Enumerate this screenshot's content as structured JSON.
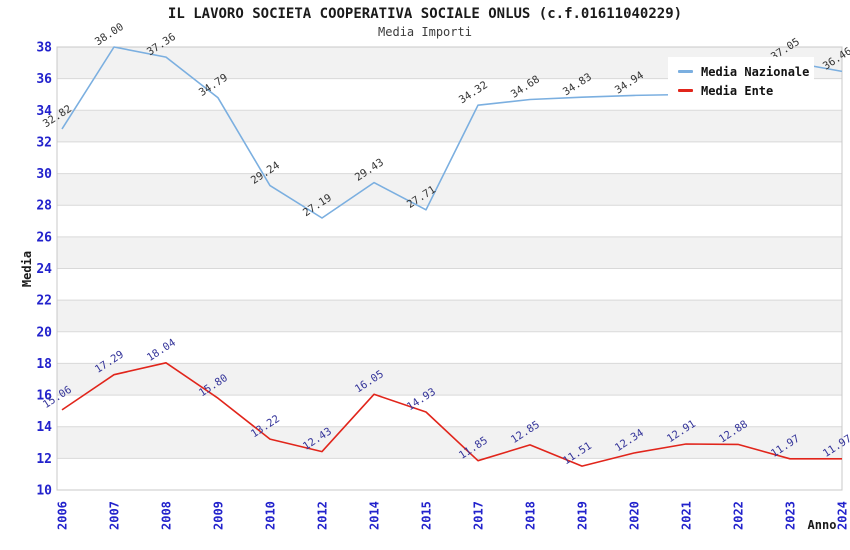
{
  "header": {
    "title": "IL LAVORO SOCIETA COOPERATIVA SOCIALE ONLUS (c.f.01611040229)",
    "subtitle": "Media Importi"
  },
  "chart_data": {
    "type": "line",
    "title": "IL LAVORO SOCIETA COOPERATIVA SOCIALE ONLUS (c.f.01611040229)",
    "subtitle": "Media Importi",
    "xlabel": "Anno",
    "ylabel": "Media",
    "ylim": [
      10,
      38
    ],
    "ytick_step": 2,
    "y_ticks": [
      38,
      36,
      34,
      32,
      30,
      28,
      26,
      24,
      22,
      20,
      18,
      16,
      14,
      12,
      10
    ],
    "grid": "horizontal-bands-alternating",
    "legend_position": "top-right",
    "categories": [
      "2006",
      "2007",
      "2008",
      "2009",
      "2010",
      "2012",
      "2014",
      "2015",
      "2017",
      "2018",
      "2019",
      "2020",
      "2021",
      "2022",
      "2023",
      "2024"
    ],
    "series": [
      {
        "name": "Media Nazionale",
        "color": "#7bafe0",
        "label_color": "#333333",
        "values": [
          32.82,
          38.0,
          37.36,
          34.79,
          29.24,
          27.19,
          29.43,
          27.71,
          34.32,
          34.68,
          34.83,
          34.94,
          35.0,
          36.2,
          37.05,
          36.46
        ],
        "labels": [
          "32.82",
          "38.00",
          "37.36",
          "34.79",
          "29.24",
          "27.19",
          "29.43",
          "27.71",
          "34.32",
          "34.68",
          "34.83",
          "34.94",
          "",
          "",
          "37.05",
          "36.46"
        ]
      },
      {
        "name": "Media Ente",
        "color": "#e1251b",
        "label_color": "#333399",
        "values": [
          15.06,
          17.29,
          18.04,
          15.8,
          13.22,
          12.43,
          16.05,
          14.93,
          11.85,
          12.85,
          11.51,
          12.34,
          12.91,
          12.88,
          11.97,
          11.97
        ],
        "labels": [
          "15.06",
          "17.29",
          "18.04",
          "15.80",
          "13.22",
          "12.43",
          "16.05",
          "14.93",
          "11.85",
          "12.85",
          "11.51",
          "12.34",
          "12.91",
          "12.88",
          "11.97",
          "11.97"
        ]
      }
    ],
    "colors": {
      "band_fill": "#f2f2f2",
      "gridline": "#d9d9d9",
      "plot_border": "#c8c8c8",
      "tick_label": "#2222cc",
      "axis_title": "#1a1a1a"
    }
  }
}
